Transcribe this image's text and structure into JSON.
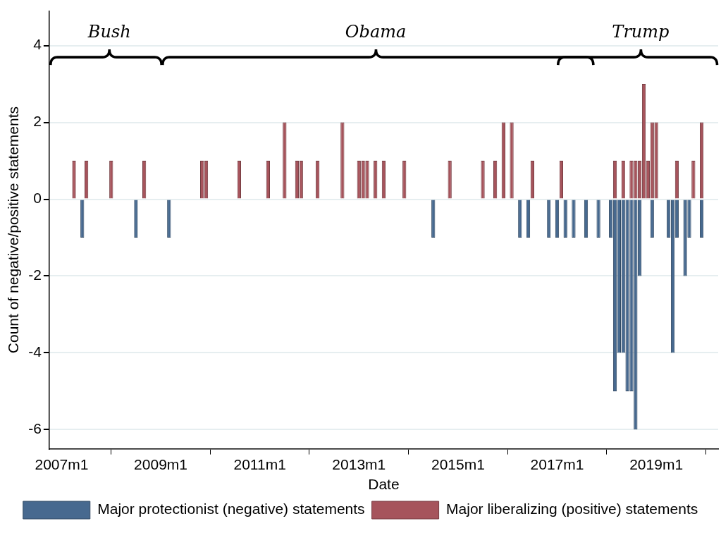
{
  "chart_data": {
    "type": "bar",
    "xlabel": "Date",
    "ylabel": "Count of negative/positive statements",
    "xlim": [
      "2006-10",
      "2020-04"
    ],
    "ylim": [
      -6.5,
      4.9
    ],
    "yticks": [
      -6,
      -4,
      -2,
      0,
      2,
      4
    ],
    "xticks": [
      {
        "value": "2007-01",
        "label": "2007m1"
      },
      {
        "value": "2009-01",
        "label": "2009m1"
      },
      {
        "value": "2011-01",
        "label": "2011m1"
      },
      {
        "value": "2013-01",
        "label": "2013m1"
      },
      {
        "value": "2015-01",
        "label": "2015m1"
      },
      {
        "value": "2017-01",
        "label": "2017m1"
      },
      {
        "value": "2019-01",
        "label": "2019m1"
      }
    ],
    "grid": "y",
    "legend": "bottom",
    "annotations": [
      "Bush",
      "Obama",
      "Trump"
    ],
    "series": [
      {
        "name": "Major protectionist (negative) statements",
        "color": "#47698f",
        "x": [
          "2007-06",
          "2008-07",
          "2009-03",
          "2014-07",
          "2016-04",
          "2016-06",
          "2016-11",
          "2017-01",
          "2017-03",
          "2017-05",
          "2017-08",
          "2017-11",
          "2018-02",
          "2018-03",
          "2018-04",
          "2018-05",
          "2018-06",
          "2018-07",
          "2018-08",
          "2018-09",
          "2018-12",
          "2019-04",
          "2019-05",
          "2019-06",
          "2019-08",
          "2019-09",
          "2019-12"
        ],
        "values": [
          -1,
          -1,
          -1,
          -1,
          -1,
          -1,
          -1,
          -1,
          -1,
          -1,
          -1,
          -1,
          -1,
          -5,
          -4,
          -4,
          -5,
          -5,
          -6,
          -2,
          -1,
          -1,
          -4,
          -1,
          -2,
          -1,
          -1
        ]
      },
      {
        "name": "Major liberalizing (positive) statements",
        "color": "#a6545c",
        "x": [
          "2007-04",
          "2007-07",
          "2008-01",
          "2008-09",
          "2009-11",
          "2009-12",
          "2010-08",
          "2011-03",
          "2011-07",
          "2011-10",
          "2011-11",
          "2012-03",
          "2012-09",
          "2013-01",
          "2013-02",
          "2013-03",
          "2013-05",
          "2013-07",
          "2013-12",
          "2014-11",
          "2015-07",
          "2015-10",
          "2015-12",
          "2016-02",
          "2016-07",
          "2017-02",
          "2018-03",
          "2018-05",
          "2018-07",
          "2018-08",
          "2018-09",
          "2018-10",
          "2018-11",
          "2018-12",
          "2019-01",
          "2019-06",
          "2019-10",
          "2019-12"
        ],
        "values": [
          1,
          1,
          1,
          1,
          1,
          1,
          1,
          1,
          2,
          1,
          1,
          1,
          2,
          1,
          1,
          1,
          1,
          1,
          1,
          1,
          1,
          1,
          2,
          2,
          1,
          1,
          1,
          1,
          1,
          1,
          1,
          3,
          1,
          2,
          2,
          1,
          1,
          2
        ]
      }
    ]
  }
}
